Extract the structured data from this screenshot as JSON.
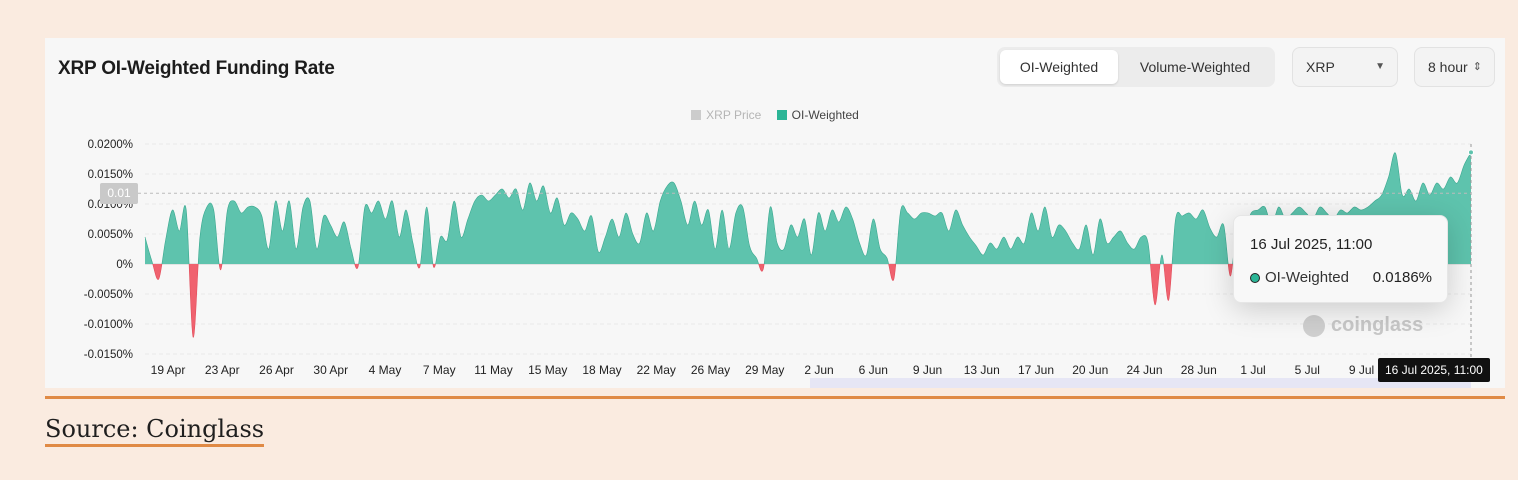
{
  "header": {
    "title": "XRP OI-Weighted Funding Rate",
    "tabs": [
      {
        "label": "OI-Weighted",
        "active": true
      },
      {
        "label": "Volume-Weighted",
        "active": false
      }
    ],
    "symbol_select": {
      "value": "XRP",
      "icon": "caret-down-icon"
    },
    "interval_select": {
      "value": "8 hour",
      "icon": "up-down-caret-icon"
    }
  },
  "legend": [
    {
      "label": "XRP Price",
      "color": "#cccccc",
      "active": false
    },
    {
      "label": "OI-Weighted",
      "color": "#2bb596",
      "active": true
    }
  ],
  "tooltip": {
    "date": "16 Jul 2025, 11:00",
    "series": "OI-Weighted",
    "value": "0.0186%"
  },
  "crosshair": {
    "x_label": "16 Jul 2025, 11:00",
    "y_label": "0.01"
  },
  "watermark": "coinglass",
  "source": "Source: Coinglass",
  "colors": {
    "positive": "#5ec3ad",
    "negative": "#f0626f",
    "accent": "#e08a45",
    "background": "#faebe0"
  },
  "chart_data": {
    "type": "area",
    "series": [
      {
        "name": "OI-Weighted",
        "unit": "%"
      }
    ],
    "y_ticks": [
      "0.0200%",
      "0.0150%",
      "0.0100%",
      "0.0050%",
      "0%",
      "-0.0050%",
      "-0.0100%",
      "-0.0150%"
    ],
    "y_tick_values": [
      0.02,
      0.015,
      0.01,
      0.005,
      0,
      -0.005,
      -0.01,
      -0.015
    ],
    "ylim": [
      -0.015,
      0.02
    ],
    "x_ticks": [
      "19 Apr",
      "23 Apr",
      "26 Apr",
      "30 Apr",
      "4 May",
      "7 May",
      "11 May",
      "15 May",
      "18 May",
      "22 May",
      "26 May",
      "29 May",
      "2 Jun",
      "6 Jun",
      "9 Jun",
      "13 Jun",
      "17 Jun",
      "20 Jun",
      "24 Jun",
      "28 Jun",
      "1 Jul",
      "5 Jul",
      "9 Jul"
    ],
    "grid": true,
    "legend": "top-center",
    "points": [
      [
        0,
        0.0045
      ],
      [
        1,
        0.0005
      ],
      [
        2,
        -0.0025
      ],
      [
        3,
        0.004
      ],
      [
        4,
        0.009
      ],
      [
        5,
        0.0055
      ],
      [
        6,
        0.009
      ],
      [
        7,
        -0.0122
      ],
      [
        8,
        0.0045
      ],
      [
        9,
        0.0095
      ],
      [
        10,
        0.009
      ],
      [
        11,
        -0.001
      ],
      [
        12,
        0.009
      ],
      [
        13,
        0.0105
      ],
      [
        14,
        0.0085
      ],
      [
        15,
        0.0095
      ],
      [
        16,
        0.0095
      ],
      [
        17,
        0.008
      ],
      [
        18,
        0.0025
      ],
      [
        19,
        0.0105
      ],
      [
        20,
        0.0055
      ],
      [
        21,
        0.0105
      ],
      [
        22,
        0.0025
      ],
      [
        23,
        0.0095
      ],
      [
        24,
        0.0105
      ],
      [
        25,
        0.0025
      ],
      [
        26,
        0.008
      ],
      [
        27,
        0.0065
      ],
      [
        28,
        0.0045
      ],
      [
        29,
        0.007
      ],
      [
        30,
        0.0025
      ],
      [
        31,
        -0.0005
      ],
      [
        32,
        0.0095
      ],
      [
        33,
        0.0085
      ],
      [
        34,
        0.0105
      ],
      [
        35,
        0.0075
      ],
      [
        36,
        0.0105
      ],
      [
        37,
        0.0045
      ],
      [
        38,
        0.009
      ],
      [
        39,
        0.0035
      ],
      [
        40,
        -0.0005
      ],
      [
        41,
        0.0095
      ],
      [
        42,
        -0.0005
      ],
      [
        43,
        0.0045
      ],
      [
        44,
        0.004
      ],
      [
        45,
        0.0105
      ],
      [
        46,
        0.0045
      ],
      [
        47,
        0.0075
      ],
      [
        48,
        0.0105
      ],
      [
        49,
        0.0115
      ],
      [
        50,
        0.0105
      ],
      [
        51,
        0.0115
      ],
      [
        52,
        0.0125
      ],
      [
        53,
        0.011
      ],
      [
        54,
        0.0125
      ],
      [
        55,
        0.009
      ],
      [
        56,
        0.0135
      ],
      [
        57,
        0.0105
      ],
      [
        58,
        0.013
      ],
      [
        59,
        0.0085
      ],
      [
        60,
        0.011
      ],
      [
        61,
        0.0065
      ],
      [
        62,
        0.0085
      ],
      [
        63,
        0.0075
      ],
      [
        64,
        0.0055
      ],
      [
        65,
        0.008
      ],
      [
        66,
        0.002
      ],
      [
        67,
        0.0045
      ],
      [
        68,
        0.0075
      ],
      [
        69,
        0.0045
      ],
      [
        70,
        0.0085
      ],
      [
        71,
        0.005
      ],
      [
        72,
        0.0035
      ],
      [
        73,
        0.0085
      ],
      [
        74,
        0.0055
      ],
      [
        75,
        0.0105
      ],
      [
        76,
        0.013
      ],
      [
        77,
        0.0135
      ],
      [
        78,
        0.0105
      ],
      [
        79,
        0.0065
      ],
      [
        80,
        0.0105
      ],
      [
        81,
        0.0065
      ],
      [
        82,
        0.009
      ],
      [
        83,
        0.0025
      ],
      [
        84,
        0.009
      ],
      [
        85,
        0.0025
      ],
      [
        86,
        0.0085
      ],
      [
        87,
        0.0095
      ],
      [
        88,
        0.003
      ],
      [
        89,
        0.001
      ],
      [
        90,
        -0.0008
      ],
      [
        91,
        0.0095
      ],
      [
        92,
        0.0035
      ],
      [
        93,
        0.0025
      ],
      [
        94,
        0.0065
      ],
      [
        95,
        0.0045
      ],
      [
        96,
        0.0075
      ],
      [
        97,
        0.0015
      ],
      [
        98,
        0.0085
      ],
      [
        99,
        0.0055
      ],
      [
        100,
        0.009
      ],
      [
        101,
        0.007
      ],
      [
        102,
        0.0095
      ],
      [
        103,
        0.0075
      ],
      [
        104,
        0.0035
      ],
      [
        105,
        0.0015
      ],
      [
        106,
        0.0075
      ],
      [
        107,
        0.0025
      ],
      [
        108,
        0.001
      ],
      [
        109,
        -0.0025
      ],
      [
        110,
        0.009
      ],
      [
        111,
        0.0085
      ],
      [
        112,
        0.0075
      ],
      [
        113,
        0.0085
      ],
      [
        114,
        0.0085
      ],
      [
        115,
        0.008
      ],
      [
        116,
        0.0085
      ],
      [
        117,
        0.0055
      ],
      [
        118,
        0.009
      ],
      [
        119,
        0.0065
      ],
      [
        120,
        0.0045
      ],
      [
        121,
        0.003
      ],
      [
        122,
        0.0015
      ],
      [
        123,
        0.0035
      ],
      [
        124,
        0.0025
      ],
      [
        125,
        0.0045
      ],
      [
        126,
        0.0025
      ],
      [
        127,
        0.0045
      ],
      [
        128,
        0.0035
      ],
      [
        129,
        0.0085
      ],
      [
        130,
        0.0055
      ],
      [
        131,
        0.0095
      ],
      [
        132,
        0.0045
      ],
      [
        133,
        0.0065
      ],
      [
        134,
        0.0055
      ],
      [
        135,
        0.0035
      ],
      [
        136,
        0.0025
      ],
      [
        137,
        0.0065
      ],
      [
        138,
        0.0015
      ],
      [
        139,
        0.0075
      ],
      [
        140,
        0.0035
      ],
      [
        141,
        0.0045
      ],
      [
        142,
        0.0055
      ],
      [
        143,
        0.0035
      ],
      [
        144,
        0.0025
      ],
      [
        145,
        0.0045
      ],
      [
        146,
        0.0035
      ],
      [
        147,
        -0.0068
      ],
      [
        148,
        0.0015
      ],
      [
        149,
        -0.006
      ],
      [
        150,
        0.0075
      ],
      [
        151,
        0.008
      ],
      [
        152,
        0.0085
      ],
      [
        153,
        0.0075
      ],
      [
        154,
        0.009
      ],
      [
        155,
        0.006
      ],
      [
        156,
        0.0045
      ],
      [
        157,
        0.0065
      ],
      [
        158,
        -0.002
      ],
      [
        159,
        0.0075
      ],
      [
        160,
        0.0055
      ],
      [
        161,
        0.0085
      ],
      [
        162,
        0.009
      ],
      [
        163,
        0.0095
      ],
      [
        164,
        0.0065
      ],
      [
        165,
        0.0095
      ],
      [
        166,
        0.0075
      ],
      [
        167,
        0.0085
      ],
      [
        168,
        0.0095
      ],
      [
        169,
        0.0085
      ],
      [
        170,
        0.0075
      ],
      [
        171,
        0.0095
      ],
      [
        172,
        0.0085
      ],
      [
        173,
        0.0075
      ],
      [
        174,
        0.009
      ],
      [
        175,
        0.0085
      ],
      [
        176,
        0.0095
      ],
      [
        177,
        0.009
      ],
      [
        178,
        0.0095
      ],
      [
        179,
        0.0105
      ],
      [
        180,
        0.0115
      ],
      [
        181,
        0.0145
      ],
      [
        182,
        0.0185
      ],
      [
        183,
        0.0115
      ],
      [
        184,
        0.0125
      ],
      [
        185,
        0.0105
      ],
      [
        186,
        0.0135
      ],
      [
        187,
        0.0115
      ],
      [
        188,
        0.0135
      ],
      [
        189,
        0.0125
      ],
      [
        190,
        0.0145
      ],
      [
        191,
        0.0135
      ],
      [
        192,
        0.0165
      ],
      [
        193,
        0.0186
      ]
    ]
  }
}
